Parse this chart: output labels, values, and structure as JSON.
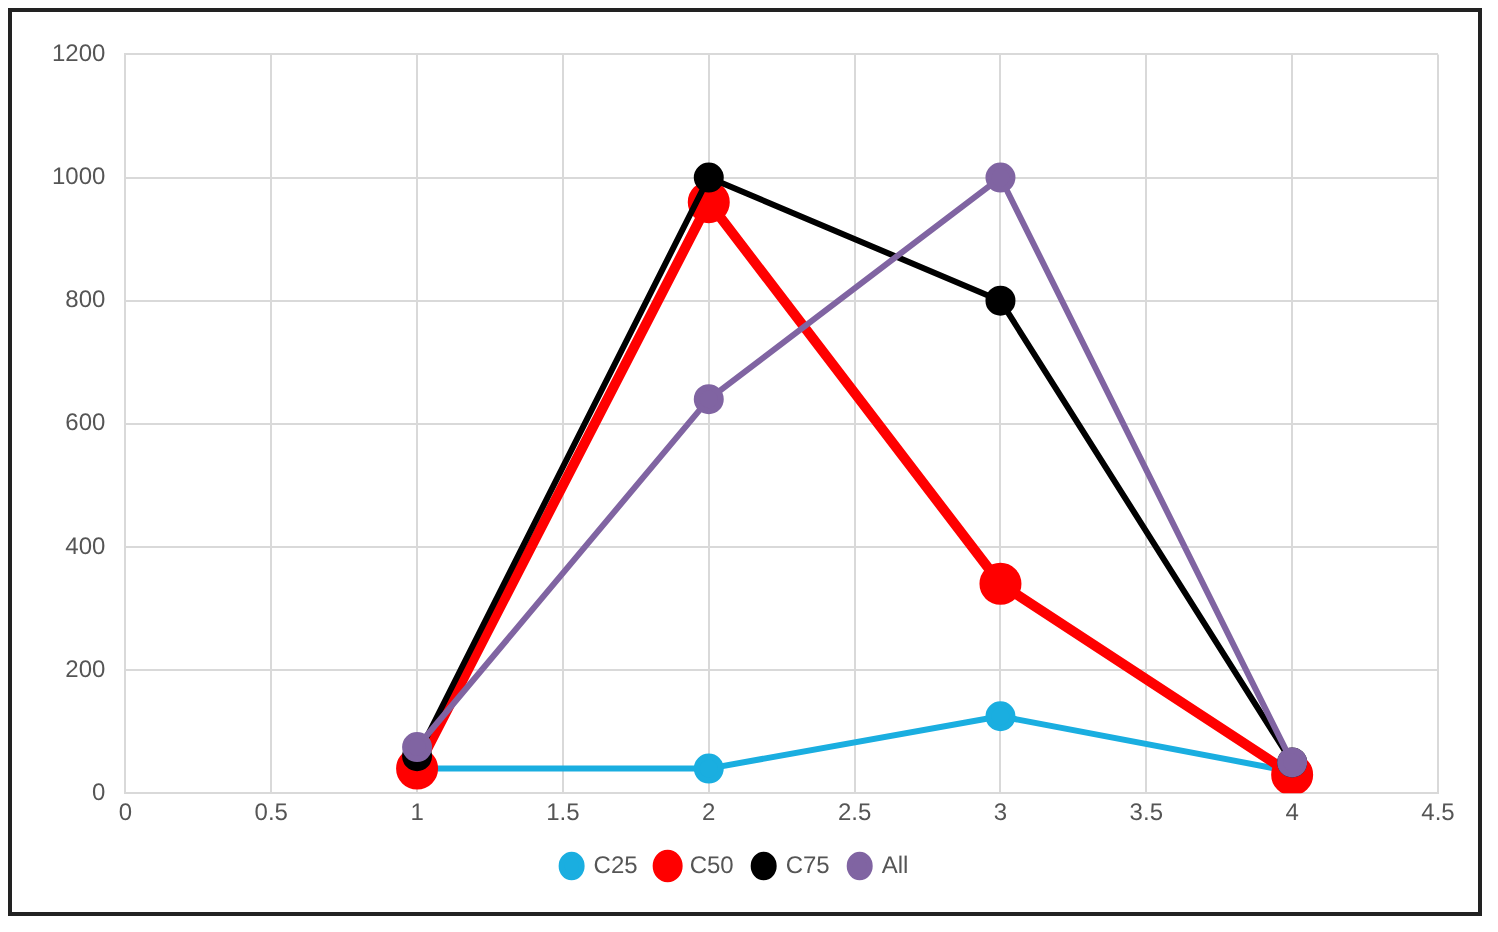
{
  "chart_data": {
    "type": "line",
    "x": [
      1,
      2,
      3,
      4
    ],
    "series": [
      {
        "name": "C25",
        "color": "#1aaee0",
        "values": [
          40,
          40,
          125,
          35
        ]
      },
      {
        "name": "C50",
        "color": "#ff0000",
        "values": [
          40,
          960,
          340,
          30
        ]
      },
      {
        "name": "C75",
        "color": "#000000",
        "values": [
          60,
          1000,
          800,
          50
        ]
      },
      {
        "name": "All",
        "color": "#8064a2",
        "values": [
          75,
          640,
          1000,
          50
        ]
      }
    ],
    "xlim": [
      0,
      4.5
    ],
    "xticks": [
      0,
      0.5,
      1,
      1.5,
      2,
      2.5,
      3,
      3.5,
      4,
      4.5
    ],
    "ylim": [
      0,
      1200
    ],
    "yticks": [
      0,
      200,
      400,
      600,
      800,
      1000,
      1200
    ],
    "grid": true,
    "legend": "bottom",
    "marker": "circle",
    "line_style": "solid"
  }
}
